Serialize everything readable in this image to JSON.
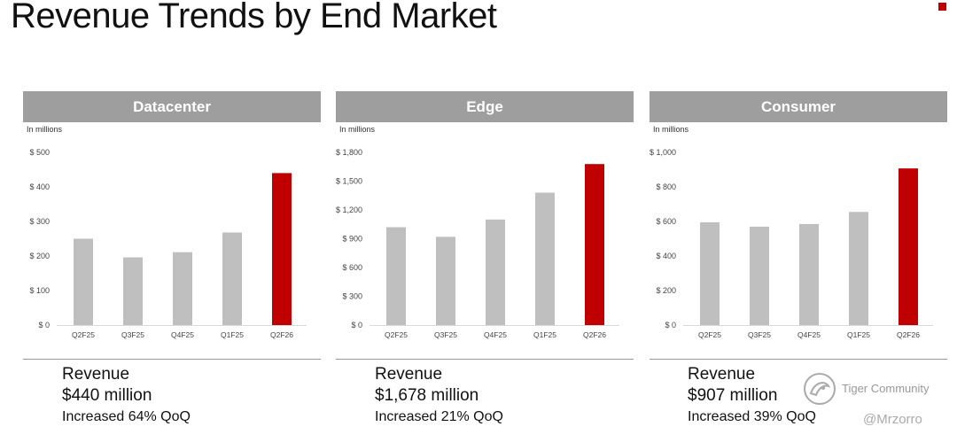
{
  "page_title": "Revenue Trends by End Market",
  "colors": {
    "header_bg": "#9e9e9e",
    "bar_gray": "#bfbfbf",
    "bar_highlight": "#c00000",
    "accent": "#c00000"
  },
  "watermark": {
    "brand": "Tiger Community",
    "handle": "@Mrzorro"
  },
  "chart_data": [
    {
      "type": "bar",
      "title": "Datacenter",
      "unit_note": "In millions",
      "categories": [
        "Q2F25",
        "Q3F25",
        "Q4F25",
        "Q1F25",
        "Q2F26"
      ],
      "values": [
        250,
        196,
        211,
        268,
        440
      ],
      "highlight_index": 4,
      "ylim": [
        0,
        500
      ],
      "yticks": [
        0,
        100,
        200,
        300,
        400,
        500
      ],
      "ytick_labels": [
        "$ 0",
        "$ 100",
        "$ 200",
        "$ 300",
        "$ 400",
        "$ 500"
      ],
      "summary": {
        "label": "Revenue",
        "amount": "$440 million",
        "change": "Increased 64% QoQ"
      }
    },
    {
      "type": "bar",
      "title": "Edge",
      "unit_note": "In millions",
      "categories": [
        "Q2F25",
        "Q3F25",
        "Q4F25",
        "Q1F25",
        "Q2F26"
      ],
      "values": [
        1020,
        920,
        1100,
        1380,
        1678
      ],
      "highlight_index": 4,
      "ylim": [
        0,
        1800
      ],
      "yticks": [
        0,
        300,
        600,
        900,
        1200,
        1500,
        1800
      ],
      "ytick_labels": [
        "$ 0",
        "$ 300",
        "$ 600",
        "$ 900",
        "$ 1,200",
        "$ 1,500",
        "$ 1,800"
      ],
      "summary": {
        "label": "Revenue",
        "amount": "$1,678 million",
        "change": "Increased 21% QoQ"
      }
    },
    {
      "type": "bar",
      "title": "Consumer",
      "unit_note": "In millions",
      "categories": [
        "Q2F25",
        "Q3F25",
        "Q4F25",
        "Q1F25",
        "Q2F26"
      ],
      "values": [
        595,
        570,
        585,
        655,
        907
      ],
      "highlight_index": 4,
      "ylim": [
        0,
        1000
      ],
      "yticks": [
        0,
        200,
        400,
        600,
        800,
        1000
      ],
      "ytick_labels": [
        "$ 0",
        "$ 200",
        "$ 400",
        "$ 600",
        "$ 800",
        "$ 1,000"
      ],
      "summary": {
        "label": "Revenue",
        "amount": "$907 million",
        "change": "Increased 39% QoQ"
      }
    }
  ]
}
